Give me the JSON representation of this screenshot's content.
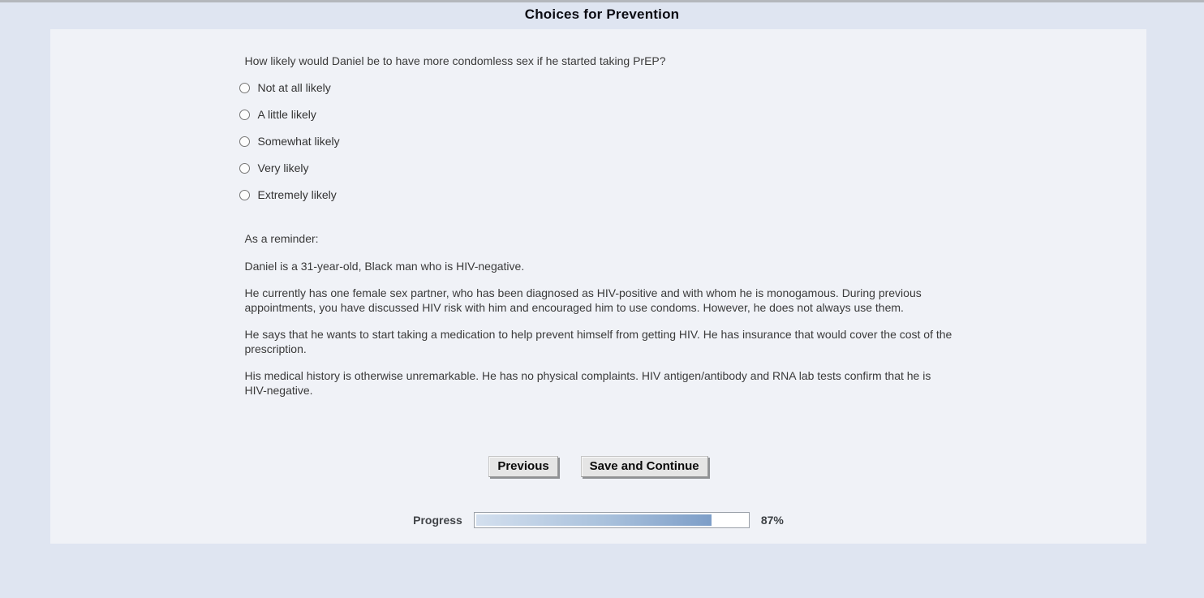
{
  "header": {
    "title": "Choices for Prevention"
  },
  "question": {
    "text": "How likely would Daniel be to have more condomless sex if he started taking PrEP?",
    "options": [
      {
        "label": "Not at all likely",
        "selected": false
      },
      {
        "label": "A little likely",
        "selected": false
      },
      {
        "label": "Somewhat likely",
        "selected": false
      },
      {
        "label": "Very likely",
        "selected": false
      },
      {
        "label": "Extremely likely",
        "selected": false
      }
    ]
  },
  "reminder": {
    "intro": "As a reminder:",
    "paragraphs": [
      "Daniel is a 31-year-old, Black man who is HIV-negative.",
      "He currently has one female sex partner, who has been diagnosed as HIV-positive and with whom he is monogamous. During previous appointments, you have discussed HIV risk with him and encouraged him to use condoms. However, he does not always use them.",
      "He says that he wants to start taking a medication to help prevent himself from getting HIV. He has insurance that would cover the cost of the prescription.",
      "His medical history is otherwise unremarkable. He has no physical complaints. HIV antigen/antibody and RNA lab tests confirm that he is HIV-negative."
    ]
  },
  "actions": {
    "previous_label": "Previous",
    "save_continue_label": "Save and Continue"
  },
  "progress": {
    "label": "Progress",
    "percent": 87,
    "percent_label": "87%"
  },
  "colors": {
    "page_background": "#dfe5f1",
    "panel_background": "#f0f2f7",
    "top_bar": "#b4b7bc",
    "progress_fill_start": "#d3dfee",
    "progress_fill_end": "#7d9ec8",
    "text": "#3a3a3a"
  }
}
